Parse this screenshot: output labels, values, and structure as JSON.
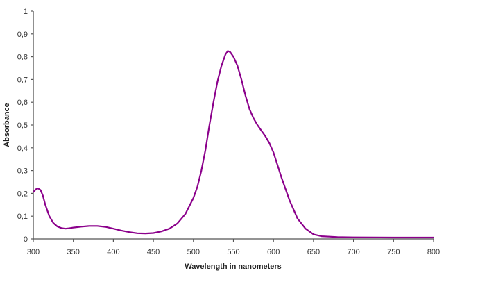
{
  "chart_data": {
    "type": "line",
    "title": "",
    "xlabel": "Wavelength in nanometers",
    "ylabel": "Absorbance",
    "xlim": [
      300,
      800
    ],
    "ylim": [
      0,
      1
    ],
    "grid": false,
    "legend": null,
    "x_ticks": [
      "300",
      "350",
      "400",
      "450",
      "500",
      "550",
      "600",
      "650",
      "700",
      "750",
      "800"
    ],
    "y_ticks": [
      "0",
      "0,1",
      "0,2",
      "0,3",
      "0,4",
      "0,5",
      "0,6",
      "0,7",
      "0,8",
      "0,9",
      "1"
    ],
    "series": [
      {
        "name": "Absorbance",
        "color": "#8B008B",
        "x": [
          300,
          303,
          306,
          309,
          312,
          315,
          320,
          325,
          330,
          335,
          340,
          345,
          350,
          360,
          370,
          380,
          390,
          400,
          410,
          420,
          430,
          440,
          450,
          460,
          470,
          480,
          490,
          500,
          505,
          510,
          515,
          520,
          525,
          530,
          535,
          540,
          543,
          546,
          550,
          555,
          560,
          565,
          570,
          575,
          580,
          585,
          590,
          595,
          600,
          610,
          620,
          630,
          640,
          650,
          660,
          670,
          680,
          700,
          750,
          800
        ],
        "y": [
          0.205,
          0.218,
          0.222,
          0.215,
          0.19,
          0.15,
          0.1,
          0.07,
          0.055,
          0.048,
          0.045,
          0.047,
          0.05,
          0.054,
          0.057,
          0.057,
          0.053,
          0.045,
          0.037,
          0.03,
          0.025,
          0.024,
          0.026,
          0.033,
          0.045,
          0.068,
          0.11,
          0.18,
          0.23,
          0.3,
          0.39,
          0.5,
          0.6,
          0.69,
          0.76,
          0.81,
          0.825,
          0.82,
          0.8,
          0.76,
          0.7,
          0.63,
          0.57,
          0.53,
          0.5,
          0.475,
          0.45,
          0.42,
          0.38,
          0.27,
          0.17,
          0.09,
          0.045,
          0.02,
          0.012,
          0.01,
          0.008,
          0.007,
          0.006,
          0.006
        ]
      }
    ]
  },
  "axes": {
    "x_title": "Wavelength in nanometers",
    "y_title": "Absorbance"
  }
}
